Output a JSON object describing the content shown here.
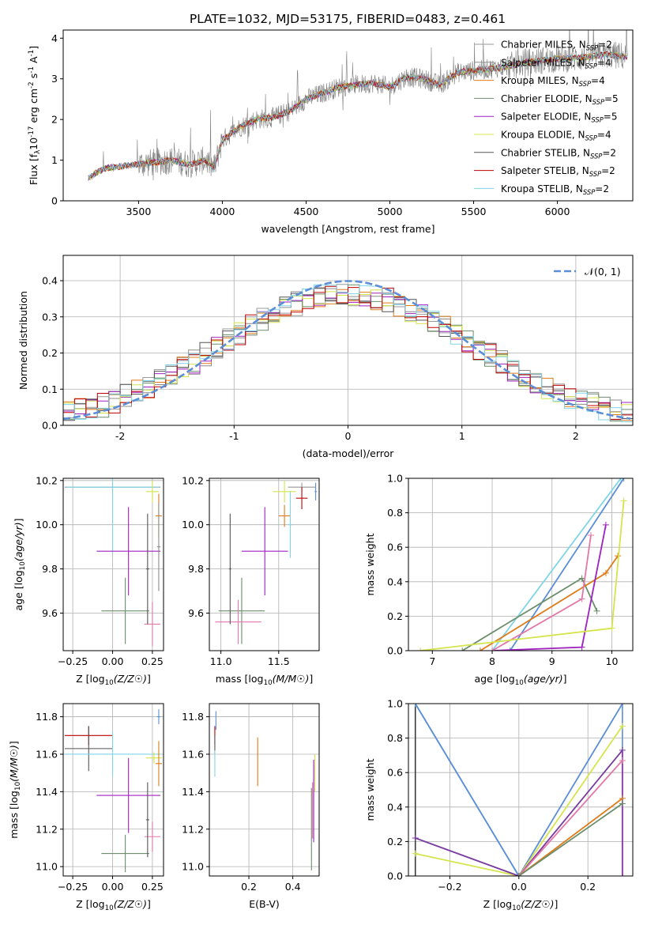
{
  "figure": {
    "title": "PLATE=1032, MJD=53175, FIBERID=0483, z=0.461",
    "series_colors": [
      "#999999",
      "#8c8c8c",
      "#e07b1a",
      "#6b8e6b",
      "#a020c0",
      "#d4e44a",
      "#555555",
      "#c00000",
      "#7fd4e8"
    ],
    "extra_colors": [
      "#e377a8",
      "#5b8ed6",
      "#7a3aa0",
      "#3a3a3a"
    ]
  },
  "chart_data": [
    {
      "id": "spectrum",
      "type": "line",
      "title": "PLATE=1032, MJD=53175, FIBERID=0483, z=0.461",
      "xlabel": "wavelength [Angstrom, rest frame]",
      "ylabel": "Flux [f_λ 10^-17 erg cm^-2 s^-1 A^-1]",
      "xlim": [
        3050,
        6450
      ],
      "ylim": [
        0,
        4.2
      ],
      "xticks": [
        3500,
        4000,
        4500,
        5000,
        5500,
        6000
      ],
      "yticks": [
        0,
        1,
        2,
        3,
        4
      ],
      "grid": false,
      "legend_position": "top-right",
      "continuum": [
        [
          3200,
          0.55
        ],
        [
          3250,
          0.7
        ],
        [
          3300,
          0.8
        ],
        [
          3400,
          0.85
        ],
        [
          3500,
          0.9
        ],
        [
          3600,
          0.95
        ],
        [
          3700,
          1.0
        ],
        [
          3800,
          0.9
        ],
        [
          3900,
          1.0
        ],
        [
          3950,
          0.8
        ],
        [
          4000,
          1.5
        ],
        [
          4100,
          1.8
        ],
        [
          4200,
          2.0
        ],
        [
          4300,
          2.05
        ],
        [
          4400,
          2.2
        ],
        [
          4500,
          2.5
        ],
        [
          4600,
          2.65
        ],
        [
          4700,
          2.8
        ],
        [
          4800,
          2.85
        ],
        [
          4900,
          2.9
        ],
        [
          5000,
          2.8
        ],
        [
          5100,
          3.05
        ],
        [
          5200,
          3.0
        ],
        [
          5300,
          2.85
        ],
        [
          5400,
          3.15
        ],
        [
          5500,
          3.2
        ],
        [
          5600,
          3.25
        ],
        [
          5700,
          3.3
        ],
        [
          5800,
          3.4
        ],
        [
          5900,
          3.45
        ],
        [
          6000,
          3.5
        ],
        [
          6100,
          3.5
        ],
        [
          6200,
          3.55
        ],
        [
          6300,
          3.6
        ],
        [
          6400,
          3.55
        ]
      ],
      "legend": [
        {
          "sym": "Chabrier MILES",
          "n": "2"
        },
        {
          "sym": "Salpeter MILES",
          "n": "4"
        },
        {
          "sym": "Kroupa MILES",
          "n": "4"
        },
        {
          "sym": "Chabrier ELODIE",
          "n": "5"
        },
        {
          "sym": "Salpeter ELODIE",
          "n": "5"
        },
        {
          "sym": "Kroupa ELODIE",
          "n": "4"
        },
        {
          "sym": "Chabrier STELIB",
          "n": "2"
        },
        {
          "sym": "Salpeter STELIB",
          "n": "2"
        },
        {
          "sym": "Kroupa STELIB",
          "n": "2"
        }
      ],
      "legend_prefix": "N",
      "legend_sub": "SSP"
    },
    {
      "id": "residuals",
      "type": "histogram",
      "xlabel": "(data-model)/error",
      "ylabel": "Normed distribution",
      "xlim": [
        -2.5,
        2.5
      ],
      "ylim": [
        0,
        0.47
      ],
      "xticks": [
        -2,
        -1,
        0,
        1,
        2
      ],
      "yticks": [
        0.0,
        0.1,
        0.2,
        0.3,
        0.4
      ],
      "grid": true,
      "legend_position": "top-right",
      "reference_label": "𝒩(0, 1)",
      "bin_width": 0.1
    },
    {
      "id": "age_vs_Z",
      "type": "errorbar",
      "xlabel": "Z [log10(Z/Z☉)]",
      "ylabel": "age  [log10(age/yr)]",
      "xlim": [
        -0.31,
        0.32
      ],
      "ylim": [
        9.43,
        10.21
      ],
      "xticks": [
        -0.25,
        0.0,
        0.25
      ],
      "xticklabels": [
        "−0.25",
        "0.00",
        "0.25"
      ],
      "yticks": [
        9.6,
        9.8,
        10.0,
        10.2
      ],
      "grid": true,
      "points": [
        {
          "c": 0,
          "x": 0.0,
          "xerr": 0.3,
          "y": 10.17,
          "yerr": 0.02
        },
        {
          "c": 8,
          "x": -0.0,
          "xerr": 0.29,
          "y": 10.17,
          "yerr": 0.3
        },
        {
          "c": 2,
          "x": 0.29,
          "xerr": 0.02,
          "y": 10.04,
          "yerr": 0.1
        },
        {
          "c": 5,
          "x": 0.25,
          "xerr": 0.04,
          "y": 10.15,
          "yerr": 0.05
        },
        {
          "c": 4,
          "x": 0.1,
          "xerr": 0.2,
          "y": 9.88,
          "yerr": 0.2
        },
        {
          "c": 3,
          "x": 0.08,
          "xerr": 0.15,
          "y": 9.61,
          "yerr": 0.15
        },
        {
          "c": 9,
          "x": 0.25,
          "xerr": 0.05,
          "y": 9.55,
          "yerr": 0.1
        },
        {
          "c": 6,
          "x": 0.22,
          "xerr": 0.01,
          "y": 9.8,
          "yerr": 0.25
        },
        {
          "c": 1,
          "x": 0.29,
          "xerr": 0.01,
          "y": 9.9,
          "yerr": 0.2
        }
      ]
    },
    {
      "id": "age_vs_mass",
      "type": "errorbar",
      "xlabel": "mass [log10(M/M☉)]",
      "ylabel": "",
      "xlim": [
        10.9,
        11.85
      ],
      "ylim": [
        9.43,
        10.21
      ],
      "xticks": [
        11.0,
        11.5
      ],
      "xticklabels": [
        "11.0",
        "11.5"
      ],
      "yticks": [
        9.6,
        9.8,
        10.0,
        10.2
      ],
      "grid": true,
      "points": [
        {
          "c": 0,
          "x": 11.7,
          "xerr": 0.12,
          "y": 10.17,
          "yerr": 0.02
        },
        {
          "c": 7,
          "x": 11.7,
          "xerr": 0.05,
          "y": 10.12,
          "yerr": 0.05
        },
        {
          "c": 2,
          "x": 11.55,
          "xerr": 0.05,
          "y": 10.04,
          "yerr": 0.05
        },
        {
          "c": 5,
          "x": 11.55,
          "xerr": 0.1,
          "y": 10.15,
          "yerr": 0.05
        },
        {
          "c": 8,
          "x": 11.6,
          "xerr": 0.02,
          "y": 10.0,
          "yerr": 0.15
        },
        {
          "c": 4,
          "x": 11.38,
          "xerr": 0.2,
          "y": 9.88,
          "yerr": 0.2
        },
        {
          "c": 3,
          "x": 11.18,
          "xerr": 0.2,
          "y": 9.61,
          "yerr": 0.15
        },
        {
          "c": 9,
          "x": 11.15,
          "xerr": 0.2,
          "y": 9.56,
          "yerr": 0.1
        },
        {
          "c": 6,
          "x": 11.08,
          "xerr": 0.01,
          "y": 9.8,
          "yerr": 0.25
        },
        {
          "c": 10,
          "x": 11.82,
          "xerr": 0.01,
          "y": 10.15,
          "yerr": 0.04
        }
      ]
    },
    {
      "id": "massweight_vs_age",
      "type": "line",
      "xlabel": "age  [log10(age/yr)]",
      "ylabel": "mass weight",
      "xlim": [
        6.6,
        10.35
      ],
      "ylim": [
        0,
        1.0
      ],
      "xticks": [
        7,
        8,
        9,
        10
      ],
      "yticks": [
        0.0,
        0.2,
        0.4,
        0.6,
        0.8,
        1.0
      ],
      "grid": true,
      "lines": [
        {
          "c": 10,
          "pts": [
            [
              8.3,
              0
            ],
            [
              10.2,
              1.0
            ]
          ]
        },
        {
          "c": 8,
          "pts": [
            [
              8.0,
              0
            ],
            [
              10.15,
              1.0
            ]
          ]
        },
        {
          "c": 3,
          "pts": [
            [
              7.5,
              0
            ],
            [
              9.5,
              0.42
            ],
            [
              9.75,
              0.23
            ]
          ]
        },
        {
          "c": 2,
          "pts": [
            [
              7.8,
              0
            ],
            [
              9.9,
              0.45
            ],
            [
              10.1,
              0.55
            ]
          ]
        },
        {
          "c": 4,
          "pts": [
            [
              8.0,
              0
            ],
            [
              9.5,
              0.02
            ],
            [
              9.9,
              0.73
            ]
          ]
        },
        {
          "c": 9,
          "pts": [
            [
              8.0,
              0
            ],
            [
              9.5,
              0.3
            ],
            [
              9.65,
              0.67
            ]
          ]
        },
        {
          "c": 5,
          "pts": [
            [
              6.8,
              0
            ],
            [
              10.0,
              0.13
            ],
            [
              10.2,
              0.87
            ]
          ]
        }
      ]
    },
    {
      "id": "mass_vs_Z",
      "type": "errorbar",
      "xlabel": "Z [log10(Z/Z☉)]",
      "ylabel": "mass [log10(M/M☉)]",
      "xlim": [
        -0.31,
        0.32
      ],
      "ylim": [
        10.95,
        11.87
      ],
      "xticks": [
        -0.25,
        0.0,
        0.25
      ],
      "xticklabels": [
        "−0.25",
        "0.00",
        "0.25"
      ],
      "yticks": [
        11.0,
        11.2,
        11.4,
        11.6,
        11.8
      ],
      "grid": true,
      "points": [
        {
          "c": 7,
          "x": -0.15,
          "xerr": 0.15,
          "y": 11.7,
          "yerr": 0.05
        },
        {
          "c": 6,
          "x": -0.15,
          "xerr": 0.15,
          "y": 11.63,
          "yerr": 0.12
        },
        {
          "c": 8,
          "x": 0.0,
          "xerr": 0.3,
          "y": 11.6,
          "yerr": 0.12
        },
        {
          "c": 5,
          "x": 0.26,
          "xerr": 0.05,
          "y": 11.58,
          "yerr": 0.03
        },
        {
          "c": 2,
          "x": 0.29,
          "xerr": 0.02,
          "y": 11.55,
          "yerr": 0.12
        },
        {
          "c": 10,
          "x": 0.29,
          "xerr": 0.01,
          "y": 11.8,
          "yerr": 0.04
        },
        {
          "c": 4,
          "x": 0.1,
          "xerr": 0.2,
          "y": 11.38,
          "yerr": 0.2
        },
        {
          "c": 3,
          "x": 0.08,
          "xerr": 0.15,
          "y": 11.07,
          "yerr": 0.1
        },
        {
          "c": 9,
          "x": 0.25,
          "xerr": 0.05,
          "y": 11.16,
          "yerr": 0.08
        },
        {
          "c": 6,
          "x": 0.22,
          "xerr": 0.01,
          "y": 11.25,
          "yerr": 0.2
        }
      ]
    },
    {
      "id": "mass_vs_ebv",
      "type": "errorbar",
      "xlabel": "E(B-V)",
      "ylabel": "",
      "xlim": [
        0.02,
        0.52
      ],
      "ylim": [
        10.95,
        11.87
      ],
      "xticks": [
        0.2,
        0.4
      ],
      "xticklabels": [
        "0.2",
        "0.4"
      ],
      "yticks": [
        11.0,
        11.2,
        11.4,
        11.6,
        11.8
      ],
      "grid": true,
      "points": [
        {
          "c": 7,
          "x": 0.045,
          "xerr": 0.0,
          "y": 11.7,
          "yerr": 0.05
        },
        {
          "c": 6,
          "x": 0.045,
          "xerr": 0.0,
          "y": 11.65,
          "yerr": 0.05
        },
        {
          "c": 10,
          "x": 0.05,
          "xerr": 0.0,
          "y": 11.78,
          "yerr": 0.05
        },
        {
          "c": 8,
          "x": 0.045,
          "xerr": 0.0,
          "y": 11.55,
          "yerr": 0.07
        },
        {
          "c": 2,
          "x": 0.24,
          "xerr": 0.0,
          "y": 11.56,
          "yerr": 0.13
        },
        {
          "c": 5,
          "x": 0.5,
          "xerr": 0.0,
          "y": 11.5,
          "yerr": 0.1
        },
        {
          "c": 4,
          "x": 0.495,
          "xerr": 0.0,
          "y": 11.35,
          "yerr": 0.22
        },
        {
          "c": 3,
          "x": 0.485,
          "xerr": 0.0,
          "y": 11.2,
          "yerr": 0.22
        },
        {
          "c": 9,
          "x": 0.49,
          "xerr": 0.0,
          "y": 11.3,
          "yerr": 0.15
        }
      ]
    },
    {
      "id": "massweight_vs_Z",
      "type": "line",
      "xlabel": "Z [log10(Z/Z☉)]",
      "ylabel": "mass weight",
      "xlim": [
        -0.32,
        0.33
      ],
      "ylim": [
        0,
        1.0
      ],
      "xticks": [
        -0.2,
        0.0,
        0.2
      ],
      "xticklabels": [
        "−0.2",
        "0.0",
        "0.2"
      ],
      "yticks": [
        0.0,
        0.2,
        0.4,
        0.6,
        0.8,
        1.0
      ],
      "grid": true,
      "lines": [
        {
          "c": 8,
          "pts": [
            [
              -0.3,
              1.0
            ],
            [
              0.0,
              0.0
            ]
          ]
        },
        {
          "c": 10,
          "pts": [
            [
              -0.3,
              1.0
            ],
            [
              0.0,
              0.0
            ],
            [
              0.3,
              1.0
            ]
          ]
        },
        {
          "c": 5,
          "pts": [
            [
              -0.3,
              0.13
            ],
            [
              0.0,
              0.0
            ],
            [
              0.3,
              0.87
            ]
          ]
        },
        {
          "c": 11,
          "pts": [
            [
              -0.3,
              0.22
            ],
            [
              0.0,
              0.0
            ],
            [
              0.3,
              0.73
            ]
          ]
        },
        {
          "c": 9,
          "pts": [
            [
              0.0,
              0.0
            ],
            [
              0.3,
              0.67
            ]
          ]
        },
        {
          "c": 2,
          "pts": [
            [
              0.0,
              0.0
            ],
            [
              0.3,
              0.45
            ]
          ]
        },
        {
          "c": 3,
          "pts": [
            [
              0.0,
              0.0
            ],
            [
              0.3,
              0.42
            ]
          ]
        }
      ],
      "vlines": [
        {
          "c": 12,
          "x": -0.3,
          "y0": 0.0,
          "y1": 0.99
        },
        {
          "c": 10,
          "x": 0.3,
          "y0": 0.0,
          "y1": 1.0
        },
        {
          "c": 4,
          "x": 0.3,
          "y0": 0.0,
          "y1": 0.73
        }
      ]
    }
  ]
}
